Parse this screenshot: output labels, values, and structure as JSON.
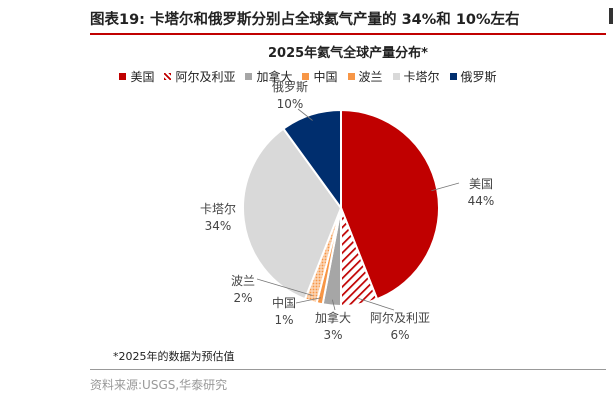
{
  "header": {
    "figure_title": "图表19:  卡塔尔和俄罗斯分别占全球氦气产量的 34%和 10%左右"
  },
  "footer": {
    "note": "*2025年的数据为预估值",
    "source": "资料来源:USGS,华泰研究"
  },
  "chart_data": {
    "type": "pie",
    "title": "2025年氦气全球产量分布*",
    "legend_position": "top",
    "categories": [
      "美国",
      "阿尔及利亚",
      "加拿大",
      "中国",
      "波兰",
      "卡塔尔",
      "俄罗斯"
    ],
    "values": [
      44,
      6,
      3,
      1,
      2,
      34,
      10
    ],
    "value_labels": [
      "44%",
      "6%",
      "3%",
      "1%",
      "2%",
      "34%",
      "10%"
    ],
    "colors": [
      "#c00000",
      "#c00000",
      "#a6a6a6",
      "#f79646",
      "#f79646",
      "#d9d9d9",
      "#002e6e"
    ],
    "patterns": [
      "solid",
      "hatched",
      "solid",
      "solid",
      "dotted",
      "solid",
      "solid"
    ]
  }
}
